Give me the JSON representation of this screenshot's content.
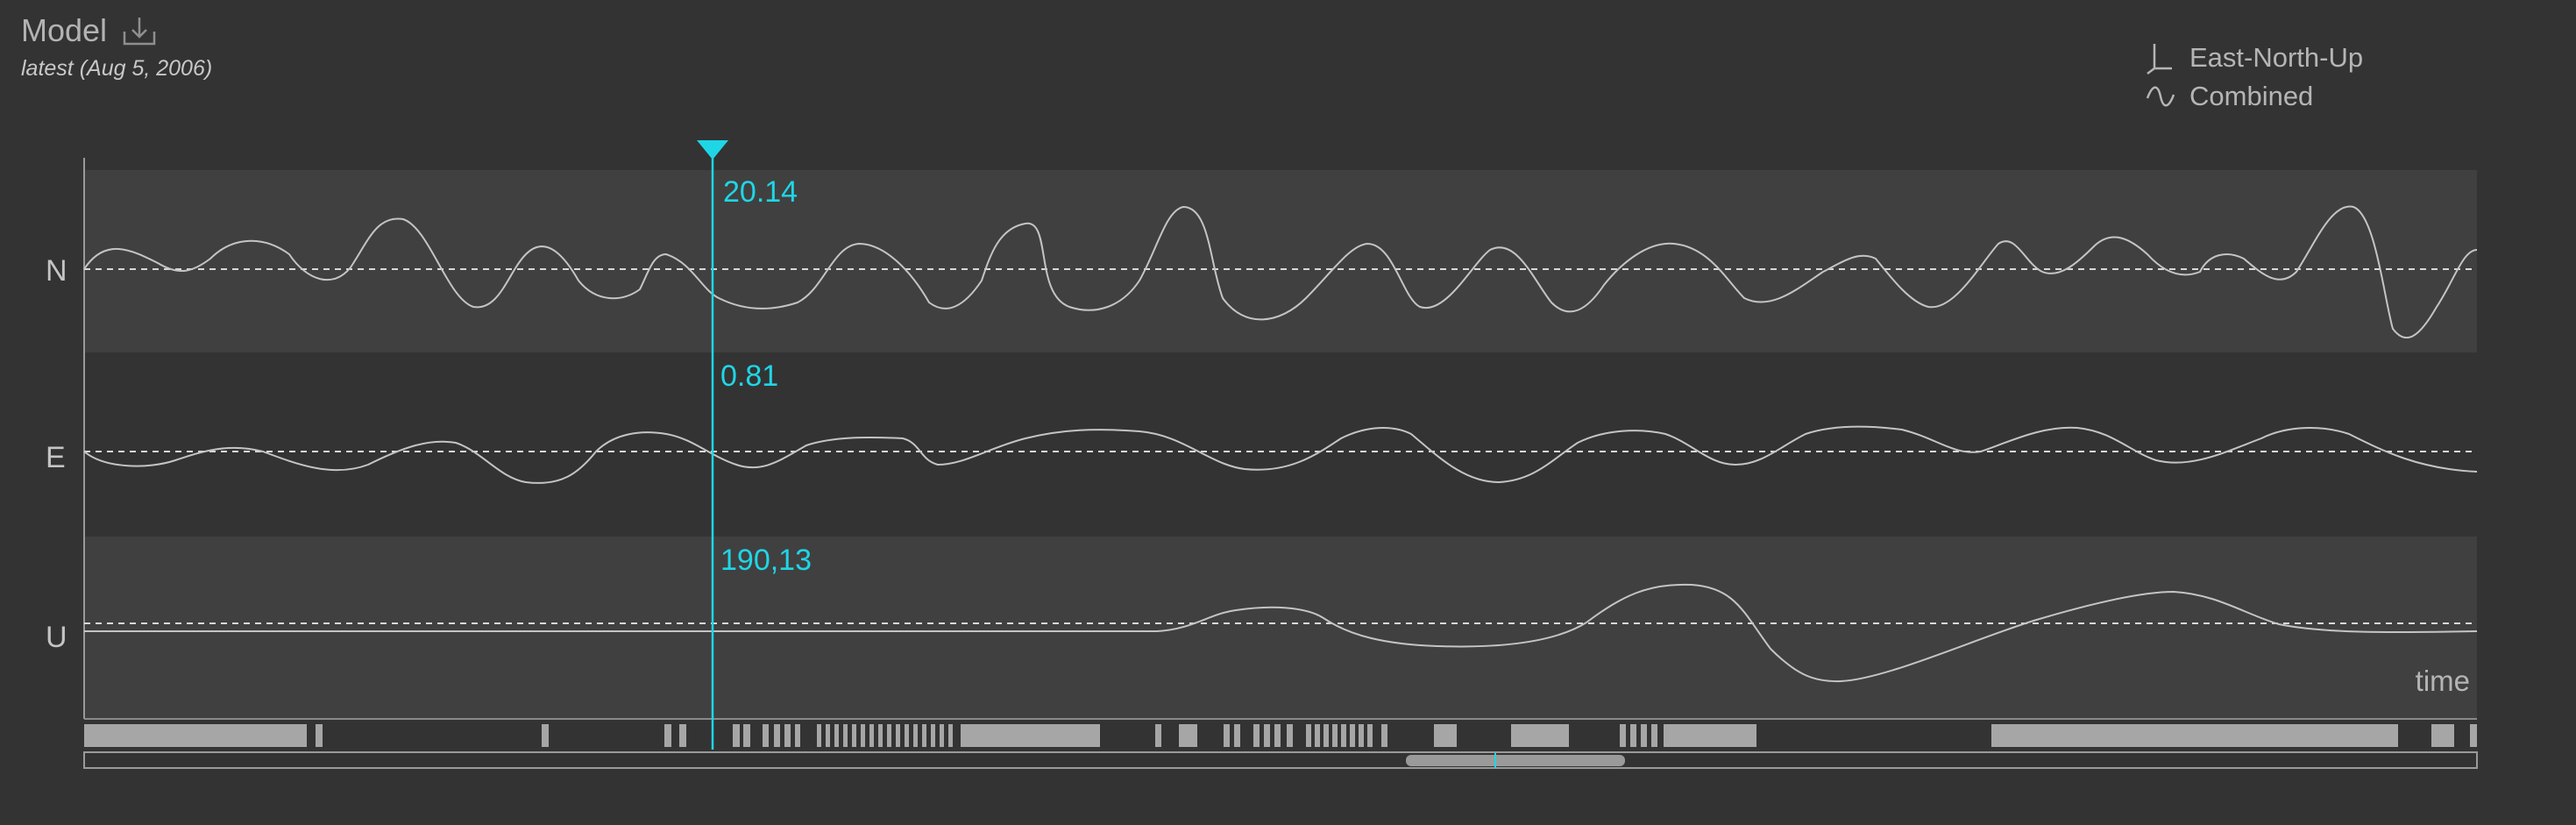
{
  "header": {
    "title": "Model",
    "subtitle": "latest (Aug 5, 2006)",
    "download_icon": "download-icon"
  },
  "legend": {
    "items": [
      {
        "icon": "axes-icon",
        "label": "East-North-Up"
      },
      {
        "icon": "wave-icon",
        "label": "Combined"
      }
    ]
  },
  "tracks": [
    {
      "label": "N",
      "cursor_value": "20.14"
    },
    {
      "label": "E",
      "cursor_value": "0.81"
    },
    {
      "label": "U",
      "cursor_value": "190,13"
    }
  ],
  "x_axis_label": "time",
  "colors": {
    "background": "#333333",
    "band": "#404040",
    "curve": "#c4c4c4",
    "cursor": "#1fd6e6",
    "availability": "#a6a6a6"
  }
}
